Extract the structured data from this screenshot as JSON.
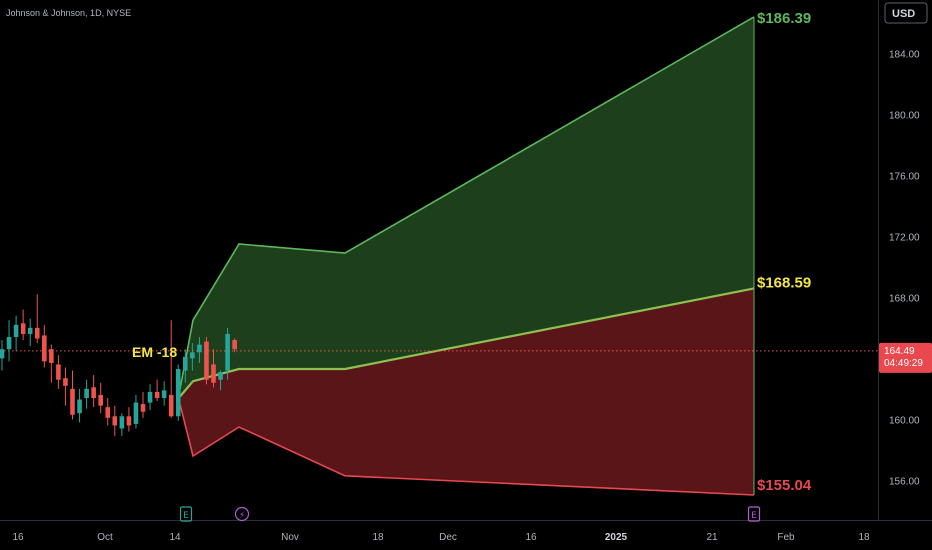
{
  "header": {
    "symbol_text": "Johnson & Johnson, 1D, NYSE"
  },
  "currency_button": {
    "label": "USD"
  },
  "last_price": {
    "value": "164.49",
    "countdown": "04:49:29"
  },
  "colors": {
    "background": "#000000",
    "green_line": "#5cb85c",
    "green_fill": "#1d3f1c",
    "red_line": "#e8484e",
    "red_fill": "#5a1519",
    "candle_up": "#26a69a",
    "candle_down": "#ef5350",
    "mid_line": "#8cc152",
    "em_label": "#f3e545",
    "price_tag": "#e8484e"
  },
  "chart_data": {
    "type": "line",
    "y_axis": {
      "ticks": [
        "184.00",
        "180.00",
        "176.00",
        "172.00",
        "168.00",
        "164.00",
        "160.00",
        "156.00"
      ],
      "range": [
        153.4,
        187.5
      ]
    },
    "x_axis": {
      "ticks": [
        "16",
        "Oct",
        "14",
        "Nov",
        "18",
        "Dec",
        "16",
        "2025",
        "21",
        "Feb",
        "18"
      ]
    },
    "annotations": {
      "upper_target": "$186.39",
      "mid_target": "$168.59",
      "lower_target": "$155.04",
      "em_label": "EM -18"
    },
    "event_markers": [
      {
        "label": "E",
        "color": "#26a69a"
      },
      {
        "label": "⚡",
        "color": "#b25bd6"
      },
      {
        "label": "E",
        "color": "#b25bd6"
      }
    ],
    "upper_band": [
      {
        "date": "Oct 16",
        "value": 162.0
      },
      {
        "date": "Oct 18",
        "value": 166.5
      },
      {
        "date": "Oct 25",
        "value": 171.5
      },
      {
        "date": "Nov 8",
        "value": 170.9
      },
      {
        "date": "Jan 24",
        "value": 186.39
      }
    ],
    "mid_line": [
      {
        "date": "Oct 16",
        "value": 161.5
      },
      {
        "date": "Oct 18",
        "value": 162.5
      },
      {
        "date": "Oct 25",
        "value": 163.3
      },
      {
        "date": "Nov 8",
        "value": 163.3
      },
      {
        "date": "Jan 24",
        "value": 168.59
      }
    ],
    "lower_band": [
      {
        "date": "Oct 16",
        "value": 161.0
      },
      {
        "date": "Oct 18",
        "value": 157.6
      },
      {
        "date": "Oct 25",
        "value": 159.5
      },
      {
        "date": "Nov 8",
        "value": 156.3
      },
      {
        "date": "Jan 24",
        "value": 155.04
      }
    ],
    "candles": [
      {
        "o": 164.0,
        "h": 165.2,
        "l": 163.2,
        "c": 164.6
      },
      {
        "o": 164.6,
        "h": 166.5,
        "l": 163.8,
        "c": 165.4
      },
      {
        "o": 165.4,
        "h": 166.8,
        "l": 164.5,
        "c": 166.2
      },
      {
        "o": 166.3,
        "h": 167.2,
        "l": 165.2,
        "c": 165.6
      },
      {
        "o": 165.6,
        "h": 166.6,
        "l": 164.8,
        "c": 166.0
      },
      {
        "o": 166.0,
        "h": 168.2,
        "l": 165.0,
        "c": 165.3
      },
      {
        "o": 165.5,
        "h": 166.2,
        "l": 163.4,
        "c": 163.8
      },
      {
        "o": 164.6,
        "h": 164.9,
        "l": 162.4,
        "c": 163.7
      },
      {
        "o": 163.6,
        "h": 164.2,
        "l": 162.0,
        "c": 162.6
      },
      {
        "o": 162.7,
        "h": 163.4,
        "l": 160.9,
        "c": 162.2
      },
      {
        "o": 162.0,
        "h": 163.2,
        "l": 160.0,
        "c": 160.3
      },
      {
        "o": 160.4,
        "h": 162.0,
        "l": 159.8,
        "c": 161.3
      },
      {
        "o": 161.4,
        "h": 162.6,
        "l": 160.7,
        "c": 162.0
      },
      {
        "o": 162.1,
        "h": 162.9,
        "l": 160.8,
        "c": 161.4
      },
      {
        "o": 161.6,
        "h": 162.4,
        "l": 160.4,
        "c": 160.9
      },
      {
        "o": 160.8,
        "h": 161.4,
        "l": 159.6,
        "c": 160.1
      },
      {
        "o": 160.2,
        "h": 160.9,
        "l": 158.9,
        "c": 159.6
      },
      {
        "o": 159.4,
        "h": 160.4,
        "l": 158.9,
        "c": 160.2
      },
      {
        "o": 160.2,
        "h": 160.8,
        "l": 159.2,
        "c": 159.6
      },
      {
        "o": 159.7,
        "h": 161.6,
        "l": 159.4,
        "c": 161.1
      },
      {
        "o": 161.0,
        "h": 161.8,
        "l": 160.1,
        "c": 160.5
      },
      {
        "o": 161.1,
        "h": 162.3,
        "l": 160.6,
        "c": 161.8
      },
      {
        "o": 161.8,
        "h": 162.6,
        "l": 161.2,
        "c": 161.4
      },
      {
        "o": 161.4,
        "h": 162.5,
        "l": 160.9,
        "c": 161.9
      },
      {
        "o": 161.6,
        "h": 166.5,
        "l": 160.1,
        "c": 160.2
      },
      {
        "o": 160.2,
        "h": 163.6,
        "l": 159.9,
        "c": 163.3
      },
      {
        "o": 163.2,
        "h": 164.6,
        "l": 162.4,
        "c": 164.1
      },
      {
        "o": 164.0,
        "h": 165.0,
        "l": 163.2,
        "c": 164.4
      },
      {
        "o": 164.4,
        "h": 165.4,
        "l": 163.7,
        "c": 164.9
      },
      {
        "o": 165.1,
        "h": 165.4,
        "l": 162.3,
        "c": 162.6
      },
      {
        "o": 163.6,
        "h": 164.6,
        "l": 162.1,
        "c": 162.4
      },
      {
        "o": 162.6,
        "h": 163.2,
        "l": 161.9,
        "c": 163.1
      },
      {
        "o": 163.2,
        "h": 166.0,
        "l": 162.6,
        "c": 165.6
      },
      {
        "o": 165.2,
        "h": 165.3,
        "l": 164.4,
        "c": 164.6
      }
    ],
    "last_close": 164.49,
    "grid": false
  }
}
